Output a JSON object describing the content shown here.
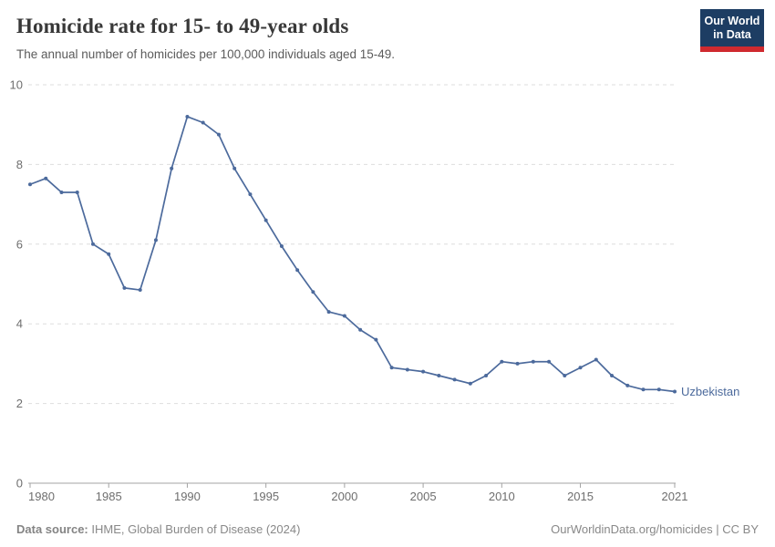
{
  "header": {
    "title": "Homicide rate for 15- to 49-year olds",
    "subtitle": "The annual number of homicides per 100,000 individuals aged 15-49."
  },
  "logo": {
    "line1": "Our World",
    "line2": "in Data",
    "bg_color": "#1d3d63",
    "accent_color": "#cf2a2f"
  },
  "footer": {
    "source_label": "Data source:",
    "source_value": " IHME, Global Burden of Disease (2024)",
    "right": "OurWorldinData.org/homicides | CC BY"
  },
  "chart_data": {
    "type": "line",
    "title": "Homicide rate for 15- to 49-year olds",
    "xlabel": "",
    "ylabel": "",
    "ylim": [
      0,
      10
    ],
    "yticks": [
      0,
      2,
      4,
      6,
      8,
      10
    ],
    "xticks": [
      1980,
      1985,
      1990,
      1995,
      2000,
      2005,
      2010,
      2015,
      2021
    ],
    "grid": "horizontal-dashed",
    "legend_position": "end-of-line-label",
    "x": [
      1980,
      1981,
      1982,
      1983,
      1984,
      1985,
      1986,
      1987,
      1988,
      1989,
      1990,
      1991,
      1992,
      1993,
      1994,
      1995,
      1996,
      1997,
      1998,
      1999,
      2000,
      2001,
      2002,
      2003,
      2004,
      2005,
      2006,
      2007,
      2008,
      2009,
      2010,
      2011,
      2012,
      2013,
      2014,
      2015,
      2016,
      2017,
      2018,
      2019,
      2020,
      2021
    ],
    "series": [
      {
        "name": "Uzbekistan",
        "color": "#4c6a9c",
        "values": [
          7.5,
          7.65,
          7.3,
          7.3,
          6.0,
          5.75,
          4.9,
          4.85,
          6.1,
          7.9,
          9.2,
          9.05,
          8.75,
          7.9,
          7.25,
          6.6,
          5.95,
          5.35,
          4.8,
          4.3,
          4.2,
          3.85,
          3.6,
          2.9,
          2.85,
          2.8,
          2.7,
          2.6,
          2.5,
          2.7,
          3.05,
          3.0,
          3.05,
          3.05,
          2.7,
          2.9,
          3.1,
          2.7,
          2.45,
          2.35,
          2.35,
          2.3
        ]
      }
    ]
  }
}
